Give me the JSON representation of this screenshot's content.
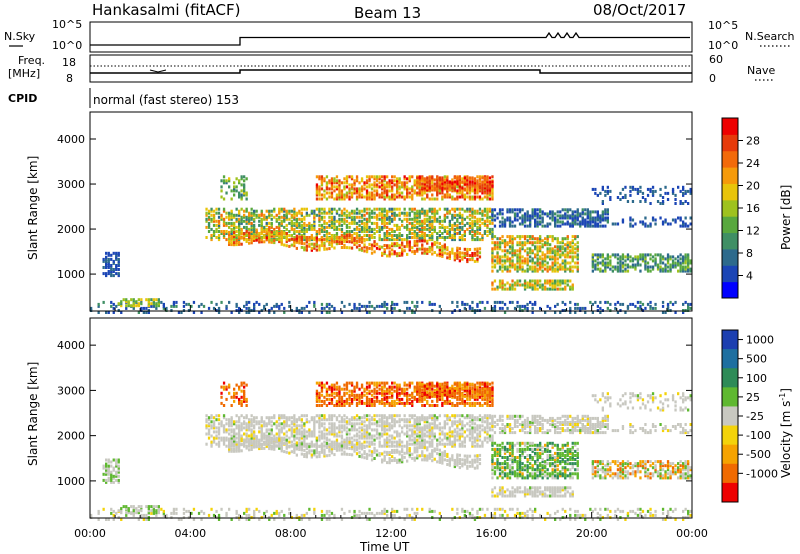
{
  "header": {
    "station": "Hankasalmi (fitACF)",
    "beam": "Beam 13",
    "date": "08/Oct/2017"
  },
  "noise_panel": {
    "left_label": "N.Sky",
    "right_label": "N.Search",
    "left_ticks": [
      "10^5",
      "10^0"
    ],
    "right_ticks": [
      "10^5",
      "10^0"
    ]
  },
  "freq_panel": {
    "left_label_1": "Freq.",
    "left_label_2": "[MHz]",
    "right_label": "Nave",
    "left_ticks": [
      "18",
      "8"
    ],
    "right_ticks": [
      "60",
      "0"
    ],
    "cpid_label": "CPID",
    "cpid_value": "normal (fast stereo) 153"
  },
  "colors": {
    "power_scale": [
      "#0000ff",
      "#1b45b5",
      "#2d6a8c",
      "#3f8f64",
      "#58a83e",
      "#9ec21e",
      "#e8c40a",
      "#f59a0a",
      "#f26a0a",
      "#e63a0a",
      "#ee0000"
    ],
    "velocity_scale": [
      "#1c3fb0",
      "#1e6fa0",
      "#2e8b57",
      "#5fb830",
      "#c8c8c0",
      "#f3d30a",
      "#f5a300",
      "#f06a00",
      "#ee0000"
    ]
  },
  "chart_data": [
    {
      "type": "heatmap",
      "name": "power",
      "ylabel": "Slant Range [km]",
      "ylim": [
        180,
        4600
      ],
      "yticks": [
        "1000",
        "2000",
        "3000",
        "4000"
      ],
      "colorbar_label": "Power [dB]",
      "colorbar_ticks": [
        "4",
        "8",
        "12",
        "16",
        "20",
        "24",
        "28"
      ],
      "colorbar_range": [
        0,
        32
      ]
    },
    {
      "type": "heatmap",
      "name": "velocity",
      "ylabel": "Slant Range [km]",
      "ylim": [
        180,
        4600
      ],
      "yticks": [
        "1000",
        "2000",
        "3000",
        "4000"
      ],
      "xlabel": "Time UT",
      "xticks": [
        "00:00",
        "04:00",
        "08:00",
        "12:00",
        "16:00",
        "20:00",
        "00:00"
      ],
      "colorbar_label": "Velocity [m s^-1]",
      "colorbar_ticks": [
        "1000",
        "500",
        "100",
        "25",
        "-25",
        "-100",
        "-500",
        "-1000"
      ]
    }
  ]
}
